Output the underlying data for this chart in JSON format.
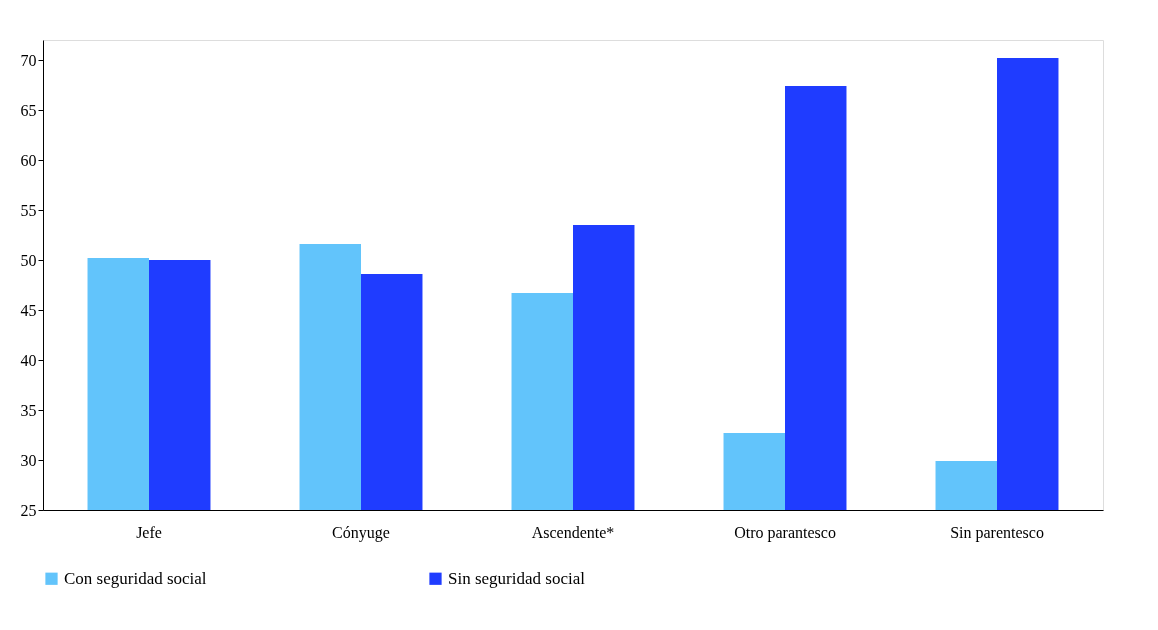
{
  "chart_data": {
    "type": "bar",
    "categories": [
      "Jefe",
      "Cónyuge",
      "Ascendente*",
      "Otro parantesco",
      "Sin parentesco"
    ],
    "series": [
      {
        "name": "Con seguridad social",
        "color": "#62c4fb",
        "values": [
          50.2,
          51.6,
          46.7,
          32.7,
          29.9
        ]
      },
      {
        "name": "Sin seguridad social",
        "color": "#1f3cff",
        "values": [
          50.0,
          48.6,
          53.5,
          67.4,
          70.2
        ]
      }
    ],
    "ylim": [
      25,
      72
    ],
    "yticks": [
      25,
      30,
      35,
      40,
      45,
      50,
      55,
      60,
      65,
      70
    ],
    "grid": false,
    "legend": "bottom"
  }
}
